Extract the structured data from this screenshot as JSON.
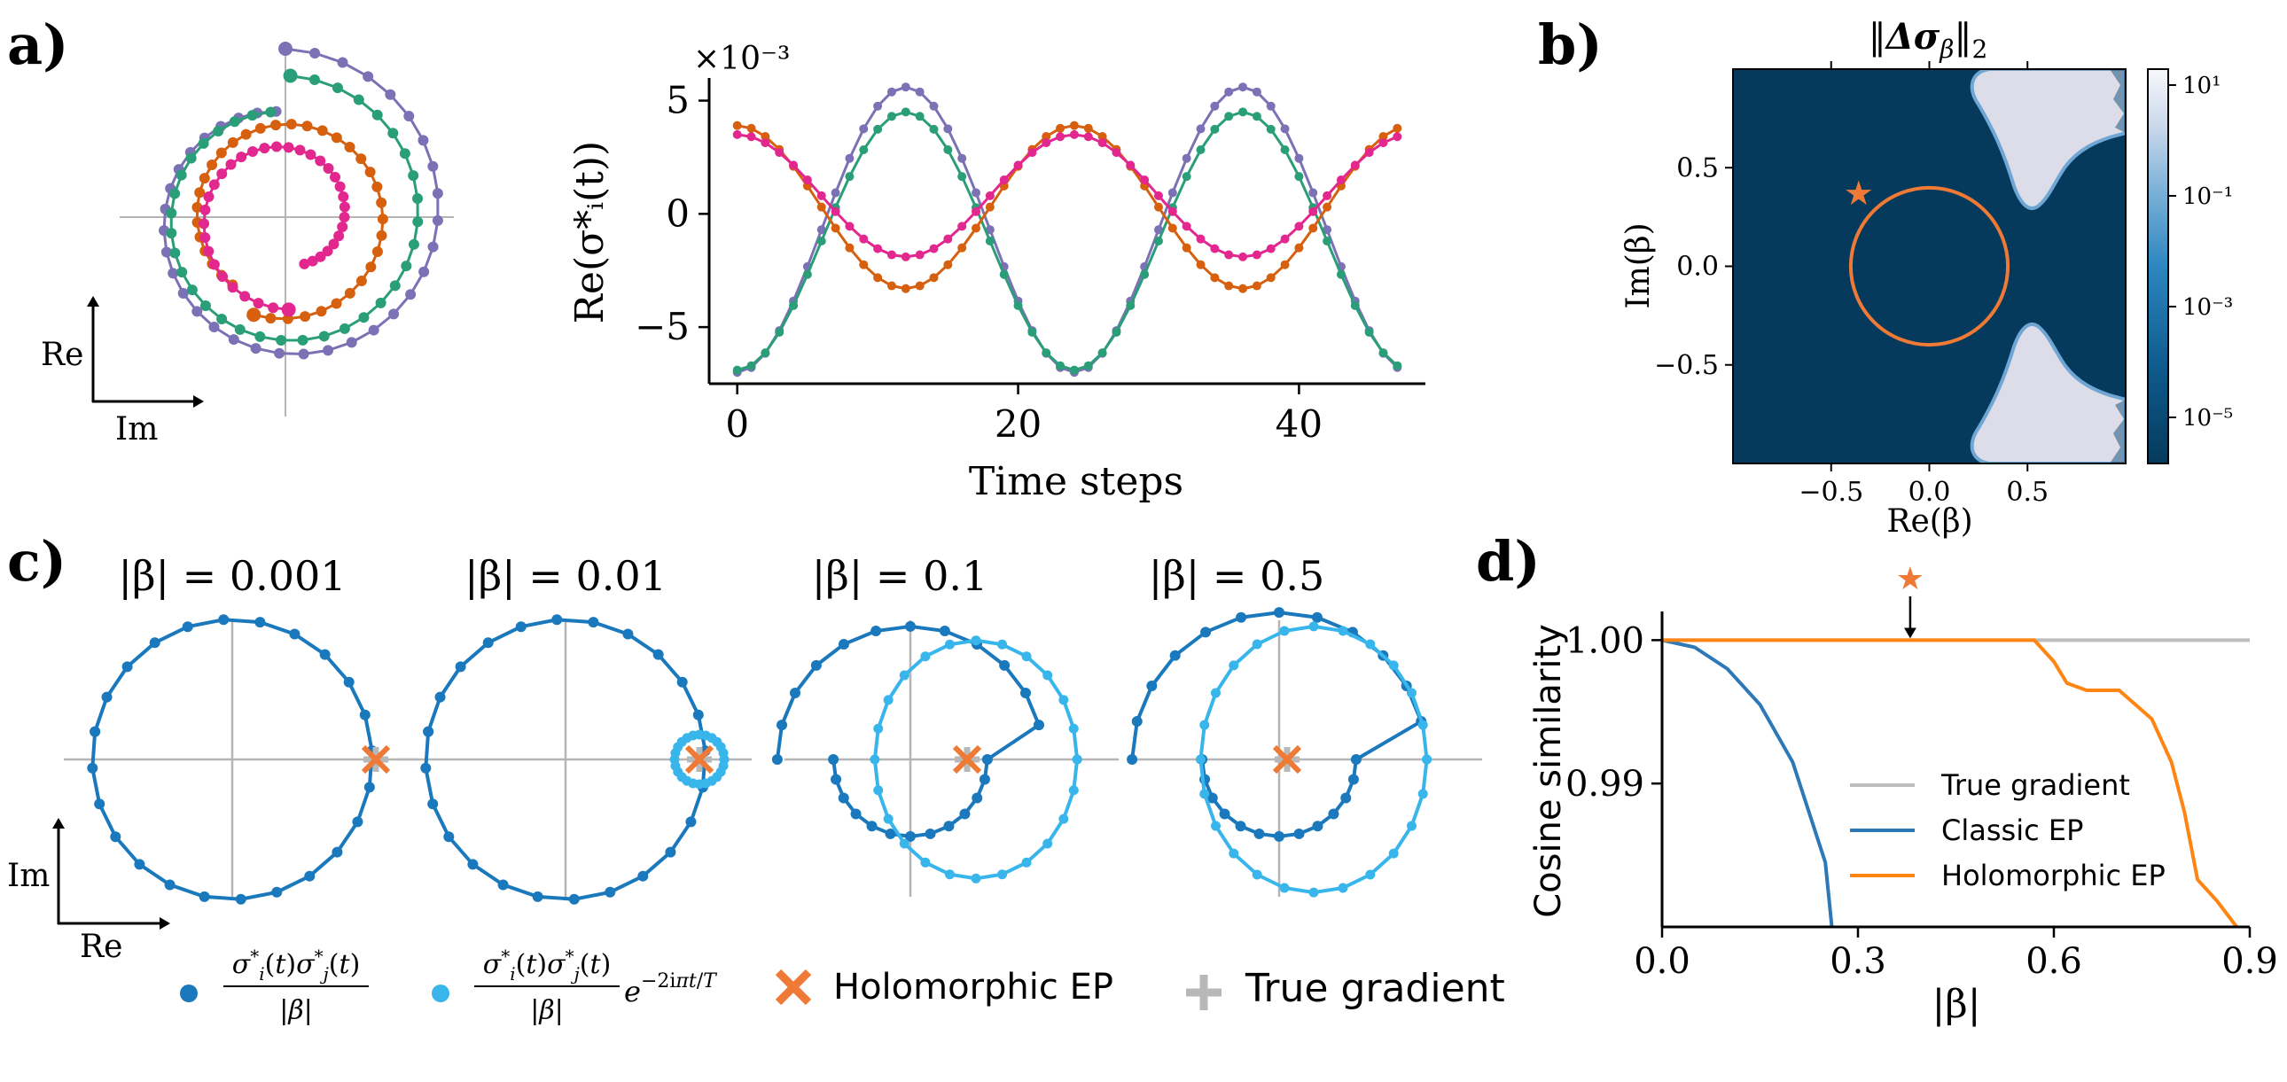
{
  "panel_labels": [
    "a)",
    "b)",
    "c)",
    "d)"
  ],
  "colors": {
    "purple": "#7b71b5",
    "green": "#2a9e78",
    "orange": "#d6600e",
    "pink": "#e2278f",
    "blue_dark": "#1a78bc",
    "blue_light": "#38b6ec",
    "ep_orange": "#ee7a36",
    "true_grey": "#b8b8b8",
    "d_orange": "#ff8513",
    "d_blue": "#2d78b6",
    "d_grey": "#bdbdbd",
    "heat_dark": "#053a5c",
    "heat_light": "#dcdde9"
  },
  "chart_data": [
    {
      "id": "a-left",
      "type": "scatter",
      "title": "",
      "description": "Complex-plane spiral trajectories of four neurons",
      "axis_labels": {
        "x": "Im",
        "y": "Re"
      },
      "series": [
        {
          "name": "purple",
          "r_start": 1.0,
          "r_end": 0.63,
          "start_angle_deg": 270,
          "sweep_deg": 355
        },
        {
          "name": "green",
          "r_start": 0.84,
          "r_end": 0.63,
          "start_angle_deg": 272,
          "sweep_deg": 350
        },
        {
          "name": "orange",
          "r_start": 0.61,
          "r_end": 0.51,
          "start_angle_deg": 108,
          "sweep_deg": -340
        },
        {
          "name": "pink",
          "r_start": 0.55,
          "r_end": 0.3,
          "start_angle_deg": 88,
          "sweep_deg": 340
        }
      ]
    },
    {
      "id": "a-right",
      "type": "line",
      "title": "",
      "xlabel": "Time steps",
      "ylabel": "Re(σ*ᵢ(t))",
      "y_scale_label": "×10⁻³",
      "xlim": [
        -2,
        49
      ],
      "ylim": [
        -7.5,
        6.0
      ],
      "xticks": [
        0,
        20,
        40
      ],
      "yticks": [
        5,
        0,
        -5
      ],
      "ytick_labels": [
        "5",
        "0",
        "−5"
      ],
      "series": [
        {
          "name": "purple",
          "amplitude": 6.3,
          "offset": -0.7,
          "period": 24,
          "phase": 0
        },
        {
          "name": "green",
          "amplitude": 5.7,
          "offset": -1.2,
          "period": 24,
          "phase": 0
        },
        {
          "name": "orange",
          "amplitude": 3.6,
          "offset": 0.3,
          "period": 24,
          "phase": 12
        },
        {
          "name": "pink",
          "amplitude": 2.7,
          "offset": 0.8,
          "period": 24,
          "phase": 12
        }
      ]
    },
    {
      "id": "b",
      "type": "heatmap",
      "title": "‖Δσ_β‖₂",
      "xlabel": "Re(β)",
      "ylabel": "Im(β)",
      "xlim": [
        -1,
        1
      ],
      "ylim": [
        -1,
        1
      ],
      "xticks": [
        -0.5,
        0.0,
        0.5
      ],
      "xtick_labels": [
        "−0.5",
        "0.0",
        "0.5"
      ],
      "yticks": [
        0.5,
        0.0,
        -0.5
      ],
      "ytick_labels": [
        "0.5",
        "0.0",
        "−0.5"
      ],
      "circle_radius": 0.4,
      "star_position": [
        -0.36,
        0.37
      ],
      "colorbar_ticks": [
        "10¹",
        "10⁻¹",
        "10⁻³",
        "10⁻⁵"
      ]
    },
    {
      "id": "c",
      "type": "scatter",
      "description": "Gradient estimator trajectories in the complex plane for four |β| values",
      "panel_titles": [
        "|β| = 0.001",
        "|β| = 0.01",
        "|β| = 0.1",
        "|β| = 0.5"
      ],
      "betas": [
        0.001,
        0.01,
        0.1,
        0.5
      ],
      "axis_labels": {
        "x": "Re",
        "y": "Im"
      },
      "legend": [
        {
          "key": "dark",
          "label": "σ*ᵢ(t)σ*ⱼ(t) / |β|"
        },
        {
          "key": "light",
          "label": "σ*ᵢ(t)σ*ⱼ(t) / |β| · e^(−2iπt/T)"
        },
        {
          "key": "ep",
          "label": "Holomorphic EP"
        },
        {
          "key": "true",
          "label": "True gradient"
        }
      ]
    },
    {
      "id": "d",
      "type": "line",
      "title": "",
      "xlabel": "|β|",
      "ylabel": "Cosine similarity",
      "xlim": [
        0.0,
        0.9
      ],
      "ylim": [
        0.98,
        1.002
      ],
      "xticks": [
        0.0,
        0.3,
        0.6,
        0.9
      ],
      "xtick_labels": [
        "0.0",
        "0.3",
        "0.6",
        "0.9"
      ],
      "yticks": [
        1.0,
        0.99
      ],
      "ytick_labels": [
        "1.00",
        "0.99"
      ],
      "star_at_x": 0.38,
      "legend_position": "center-right",
      "series": [
        {
          "name": "True gradient",
          "x": [
            0.0,
            0.9
          ],
          "y": [
            1.0,
            1.0
          ]
        },
        {
          "name": "Classic EP",
          "x": [
            0.0,
            0.05,
            0.1,
            0.15,
            0.2,
            0.25,
            0.26
          ],
          "y": [
            1.0,
            0.9995,
            0.998,
            0.9955,
            0.9915,
            0.9845,
            0.98
          ]
        },
        {
          "name": "Holomorphic EP",
          "x": [
            0.0,
            0.57,
            0.6,
            0.62,
            0.65,
            0.7,
            0.75,
            0.78,
            0.8,
            0.82,
            0.85,
            0.88
          ],
          "y": [
            1.0,
            1.0,
            0.9985,
            0.997,
            0.9965,
            0.9965,
            0.9945,
            0.9915,
            0.988,
            0.9833,
            0.9818,
            0.98
          ]
        }
      ]
    }
  ]
}
